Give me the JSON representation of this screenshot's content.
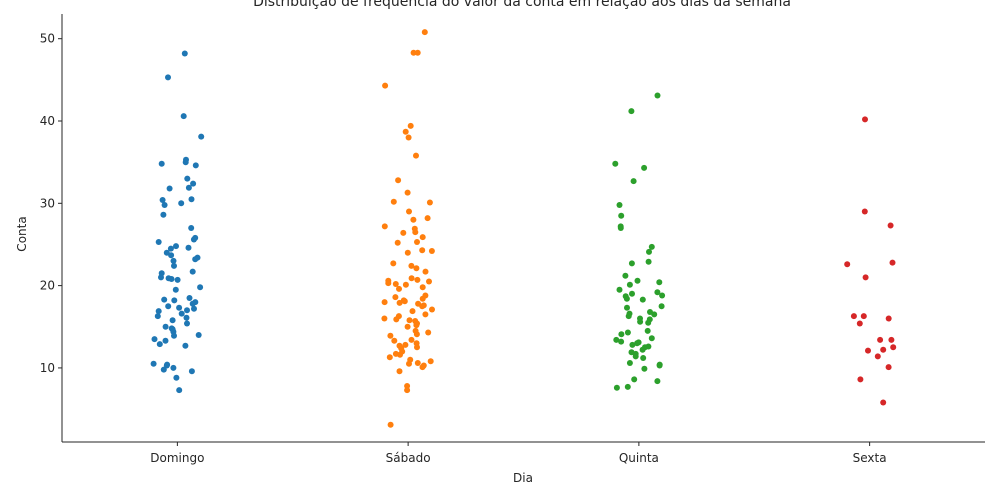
{
  "chart_data": {
    "type": "scatter",
    "title": "Distribuição de frequência do valor da conta em relação aos dias da semana",
    "xlabel": "Dia",
    "ylabel": "Conta",
    "categories": [
      "Domingo",
      "Sábado",
      "Quinta",
      "Sexta"
    ],
    "ylim": [
      1,
      53
    ],
    "yticks": [
      10,
      20,
      30,
      40,
      50
    ],
    "grid": false,
    "series": [
      {
        "color": "#1f77b4",
        "values": [
          48.2,
          45.3,
          40.6,
          38.1,
          35.3,
          35.0,
          34.8,
          34.6,
          33.0,
          32.4,
          31.9,
          31.8,
          30.5,
          30.4,
          30.0,
          29.8,
          28.6,
          27.0,
          25.8,
          25.6,
          25.3,
          24.8,
          24.6,
          24.5,
          24.0,
          23.7,
          23.4,
          23.2,
          23.0,
          22.4,
          21.7,
          21.5,
          21.0,
          20.9,
          20.8,
          20.7,
          19.8,
          19.5,
          18.5,
          18.3,
          18.2,
          18.0,
          17.8,
          17.5,
          17.3,
          17.2,
          17.0,
          16.9,
          16.6,
          16.3,
          16.1,
          15.8,
          15.4,
          15.0,
          14.8,
          14.7,
          14.4,
          14.0,
          13.9,
          13.5,
          13.3,
          12.9,
          12.7,
          10.5,
          10.4,
          10.3,
          10.0,
          9.8,
          9.6,
          8.8,
          7.3
        ]
      },
      {
        "color": "#ff7f0e",
        "values": [
          50.8,
          48.3,
          48.3,
          44.3,
          39.4,
          38.7,
          38.0,
          35.8,
          32.8,
          31.3,
          30.1,
          30.2,
          29.0,
          28.2,
          28.0,
          27.2,
          26.9,
          26.5,
          26.4,
          25.9,
          25.3,
          25.2,
          24.3,
          24.2,
          24.0,
          22.7,
          22.4,
          22.1,
          21.7,
          20.9,
          20.7,
          20.6,
          20.5,
          20.3,
          20.2,
          20.1,
          19.8,
          19.6,
          18.8,
          18.6,
          18.4,
          18.2,
          18.1,
          18.0,
          17.9,
          17.8,
          17.6,
          17.5,
          17.1,
          16.9,
          16.5,
          16.3,
          16.0,
          15.9,
          15.8,
          15.7,
          15.4,
          15.2,
          15.0,
          14.5,
          14.3,
          14.1,
          13.9,
          13.4,
          13.3,
          13.0,
          12.8,
          12.7,
          12.5,
          12.4,
          12.0,
          11.7,
          11.6,
          11.3,
          11.0,
          10.8,
          10.6,
          10.5,
          10.3,
          10.1,
          9.6,
          7.8,
          7.3,
          3.1
        ]
      },
      {
        "color": "#2ca02c",
        "values": [
          43.1,
          41.2,
          34.8,
          34.3,
          32.7,
          29.8,
          28.5,
          27.2,
          27.0,
          24.7,
          24.1,
          22.9,
          22.7,
          21.2,
          20.6,
          20.4,
          20.1,
          19.5,
          19.2,
          19.0,
          18.8,
          18.7,
          18.4,
          18.3,
          17.5,
          17.3,
          16.8,
          16.6,
          16.5,
          16.3,
          16.0,
          15.9,
          15.6,
          15.5,
          14.5,
          14.3,
          14.1,
          13.6,
          13.4,
          13.2,
          13.1,
          13.0,
          12.8,
          12.6,
          12.5,
          12.2,
          11.9,
          11.7,
          11.4,
          11.2,
          10.6,
          10.4,
          10.3,
          9.9,
          8.6,
          8.4,
          7.7,
          7.6
        ]
      },
      {
        "color": "#d62728",
        "values": [
          40.2,
          29.0,
          27.3,
          22.8,
          22.6,
          21.0,
          16.3,
          16.3,
          16.0,
          15.4,
          13.4,
          13.4,
          12.5,
          12.2,
          12.1,
          11.4,
          10.1,
          8.6,
          5.8
        ]
      }
    ]
  }
}
